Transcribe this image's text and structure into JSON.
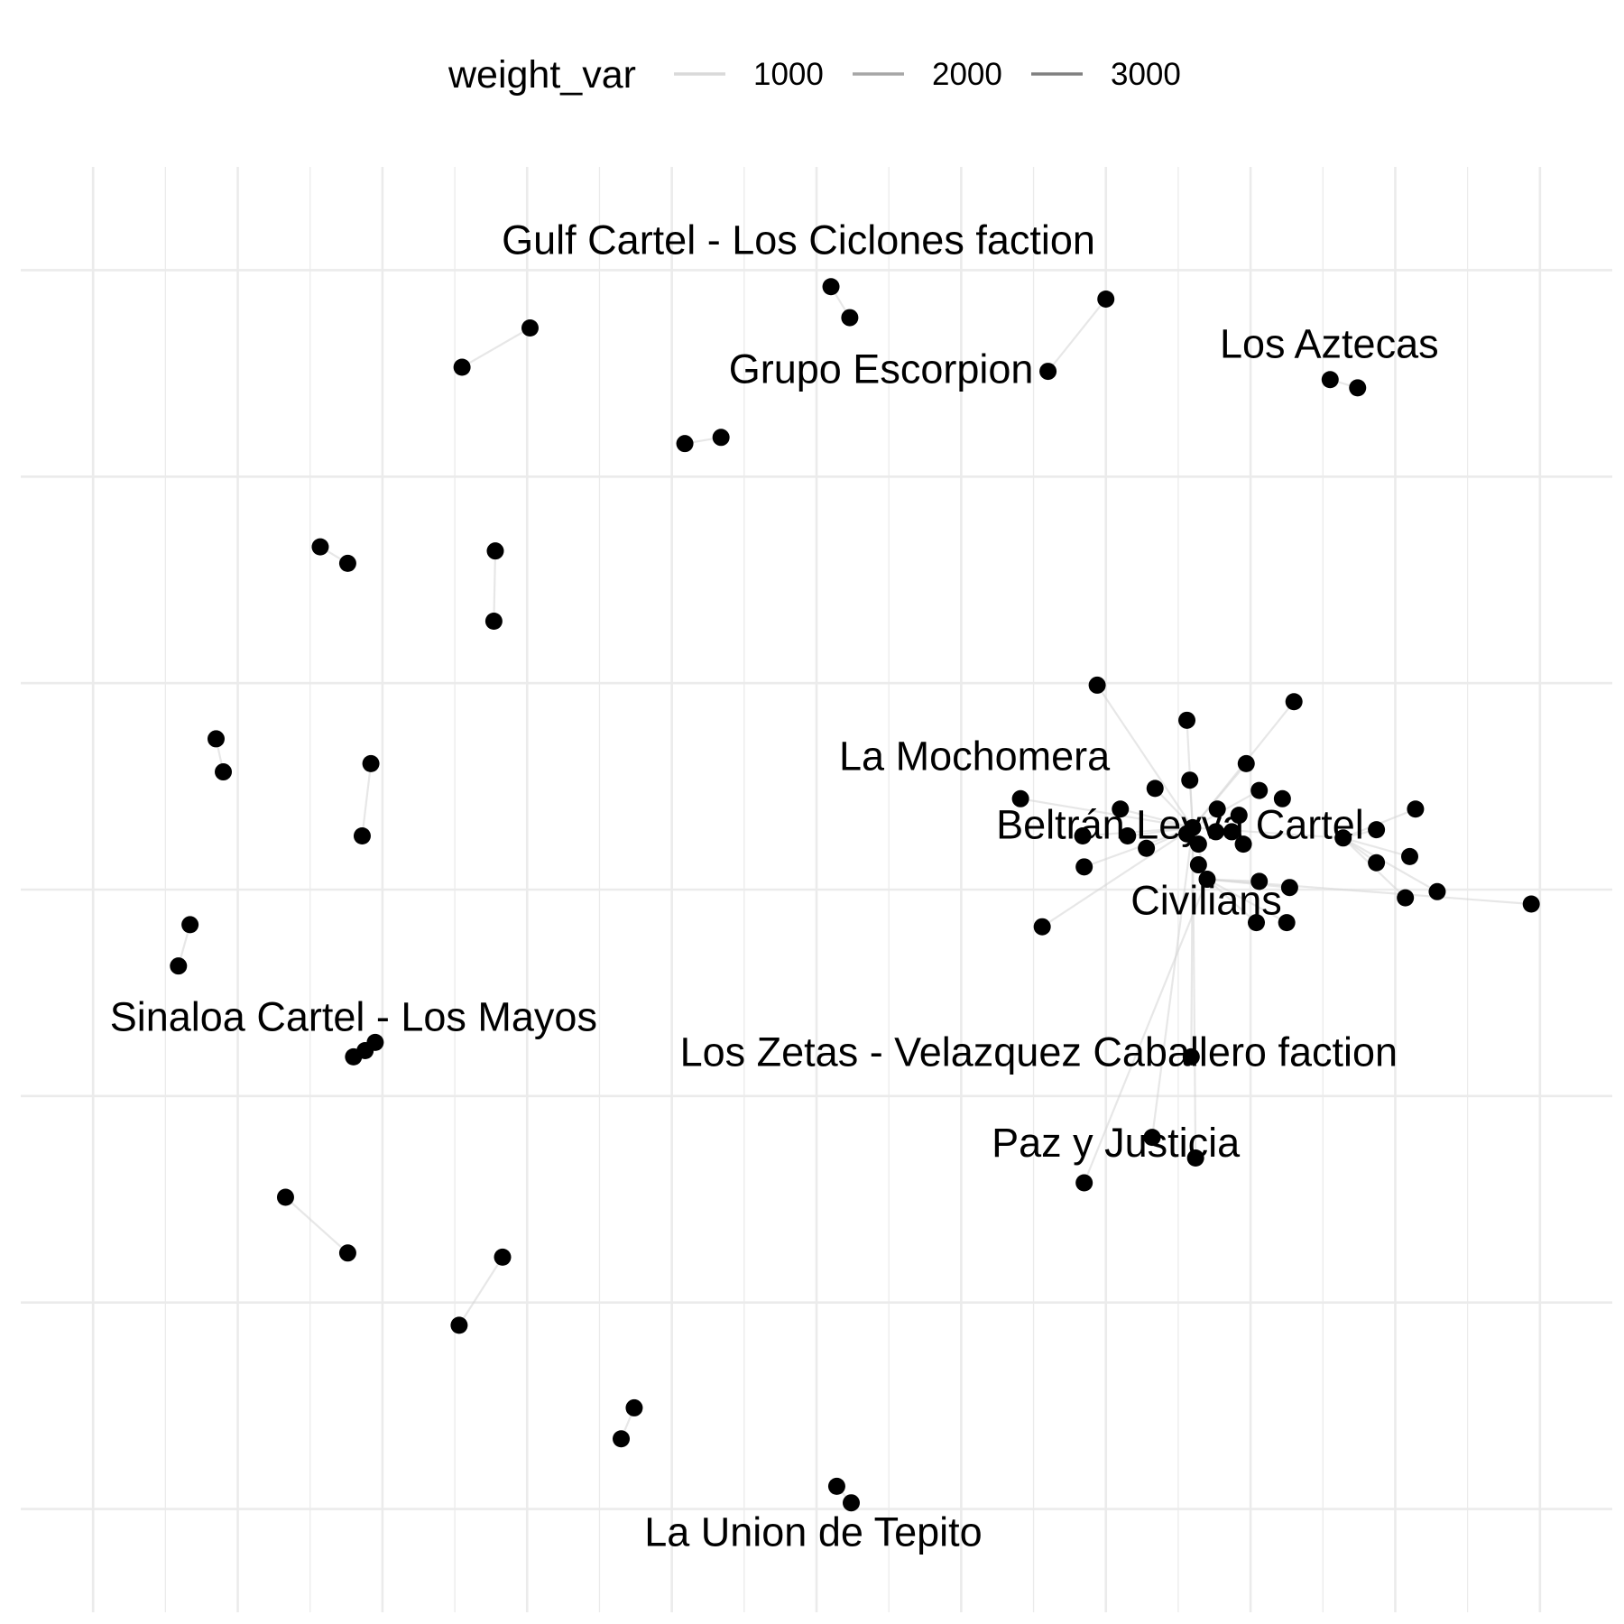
{
  "chart_data": {
    "type": "network",
    "title": "",
    "xlabel": "",
    "ylabel": "",
    "grid": true,
    "axes": "hidden",
    "xlim": [
      -0.5,
      10.5
    ],
    "ylim": [
      -0.5,
      6.5
    ],
    "legend": {
      "position": "top",
      "title": "weight_var",
      "entries": [
        {
          "label": "1000",
          "value": 1000,
          "color": "#d9d9d9"
        },
        {
          "label": "2000",
          "value": 2000,
          "color": "#a6a6a6"
        },
        {
          "label": "3000",
          "value": 3000,
          "color": "#808080"
        }
      ]
    },
    "labels": [
      {
        "text": "Gulf Cartel - Los Ciclones faction",
        "node": "gulf"
      },
      {
        "text": "Grupo Escorpion",
        "node": "grupo"
      },
      {
        "text": "Los Aztecas",
        "node": "aztecas"
      },
      {
        "text": "La Mochomera",
        "node": "mochomera"
      },
      {
        "text": "Beltrán Leyva Cartel",
        "node": "blc"
      },
      {
        "text": "Civilians",
        "node": "civ"
      },
      {
        "text": "Sinaloa Cartel - Los Mayos",
        "node": "mayos"
      },
      {
        "text": "Los Zetas - Velazquez Caballero faction",
        "node": "zetas"
      },
      {
        "text": "Paz y Justicia",
        "node": "paz"
      },
      {
        "text": "La Union de Tepito",
        "node": "tepito"
      }
    ],
    "nodes": [
      {
        "id": "gulf",
        "x": 5.1,
        "y": 5.92
      },
      {
        "id": "gulf_b",
        "x": 5.23,
        "y": 5.77
      },
      {
        "id": "grupo",
        "x": 6.6,
        "y": 5.51
      },
      {
        "id": "grupo_b",
        "x": 7.0,
        "y": 5.86
      },
      {
        "id": "aztecas",
        "x": 8.55,
        "y": 5.47
      },
      {
        "id": "aztecas_b",
        "x": 8.74,
        "y": 5.43
      },
      {
        "id": "n1",
        "x": 3.02,
        "y": 5.72
      },
      {
        "id": "n2",
        "x": 2.55,
        "y": 5.53
      },
      {
        "id": "n3",
        "x": 4.09,
        "y": 5.16
      },
      {
        "id": "n4",
        "x": 4.34,
        "y": 5.19
      },
      {
        "id": "n5",
        "x": 1.57,
        "y": 4.66
      },
      {
        "id": "n6",
        "x": 1.76,
        "y": 4.58
      },
      {
        "id": "n7",
        "x": 2.78,
        "y": 4.64
      },
      {
        "id": "n8",
        "x": 2.77,
        "y": 4.3
      },
      {
        "id": "n9",
        "x": 0.85,
        "y": 3.73
      },
      {
        "id": "n10",
        "x": 0.9,
        "y": 3.57
      },
      {
        "id": "n11",
        "x": 1.92,
        "y": 3.61
      },
      {
        "id": "n12",
        "x": 1.86,
        "y": 3.26
      },
      {
        "id": "n13",
        "x": 0.67,
        "y": 2.83
      },
      {
        "id": "n14",
        "x": 0.59,
        "y": 2.63
      },
      {
        "id": "mayos",
        "x": 1.8,
        "y": 2.19
      },
      {
        "id": "mayos_b",
        "x": 1.88,
        "y": 2.22
      },
      {
        "id": "mayos_c",
        "x": 1.95,
        "y": 2.26
      },
      {
        "id": "n15",
        "x": 1.33,
        "y": 1.51
      },
      {
        "id": "n16",
        "x": 1.76,
        "y": 1.24
      },
      {
        "id": "n17",
        "x": 2.83,
        "y": 1.22
      },
      {
        "id": "n18",
        "x": 2.53,
        "y": 0.89
      },
      {
        "id": "n19",
        "x": 3.74,
        "y": 0.49
      },
      {
        "id": "n20",
        "x": 3.65,
        "y": 0.34
      },
      {
        "id": "tepito",
        "x": 5.14,
        "y": 0.11
      },
      {
        "id": "tepito_b",
        "x": 5.24,
        "y": 0.03
      },
      {
        "id": "blc",
        "x": 7.6,
        "y": 3.3
      },
      {
        "id": "civ",
        "x": 7.7,
        "y": 3.05
      },
      {
        "id": "mochomera",
        "x": 6.41,
        "y": 3.44
      },
      {
        "id": "zetas",
        "x": 7.59,
        "y": 2.19
      },
      {
        "id": "paz",
        "x": 6.85,
        "y": 1.58
      },
      {
        "id": "h1",
        "x": 6.94,
        "y": 3.99
      },
      {
        "id": "h2",
        "x": 7.56,
        "y": 3.82
      },
      {
        "id": "h3",
        "x": 8.3,
        "y": 3.91
      },
      {
        "id": "h4",
        "x": 7.97,
        "y": 3.61
      },
      {
        "id": "h5",
        "x": 8.06,
        "y": 3.48
      },
      {
        "id": "h6",
        "x": 7.58,
        "y": 3.53
      },
      {
        "id": "h7",
        "x": 7.34,
        "y": 3.49
      },
      {
        "id": "h8",
        "x": 7.1,
        "y": 3.39
      },
      {
        "id": "h9",
        "x": 6.84,
        "y": 3.26
      },
      {
        "id": "h10",
        "x": 7.15,
        "y": 3.26
      },
      {
        "id": "h11",
        "x": 7.77,
        "y": 3.39
      },
      {
        "id": "h12",
        "x": 7.92,
        "y": 3.36
      },
      {
        "id": "h13",
        "x": 8.22,
        "y": 3.44
      },
      {
        "id": "h14",
        "x": 7.56,
        "y": 3.27
      },
      {
        "id": "h15",
        "x": 7.64,
        "y": 3.22
      },
      {
        "id": "h16",
        "x": 7.76,
        "y": 3.28
      },
      {
        "id": "h17",
        "x": 7.87,
        "y": 3.28
      },
      {
        "id": "h18",
        "x": 7.95,
        "y": 3.22
      },
      {
        "id": "h19",
        "x": 7.28,
        "y": 3.2
      },
      {
        "id": "h20",
        "x": 7.64,
        "y": 3.12
      },
      {
        "id": "h21",
        "x": 6.85,
        "y": 3.11
      },
      {
        "id": "h22",
        "x": 8.06,
        "y": 3.04
      },
      {
        "id": "h23",
        "x": 8.27,
        "y": 3.01
      },
      {
        "id": "h24",
        "x": 8.64,
        "y": 3.25
      },
      {
        "id": "h25",
        "x": 8.87,
        "y": 3.29
      },
      {
        "id": "h26",
        "x": 9.14,
        "y": 3.39
      },
      {
        "id": "h27",
        "x": 8.87,
        "y": 3.13
      },
      {
        "id": "h28",
        "x": 9.1,
        "y": 3.16
      },
      {
        "id": "h29",
        "x": 9.07,
        "y": 2.96
      },
      {
        "id": "h30",
        "x": 9.29,
        "y": 2.99
      },
      {
        "id": "h31",
        "x": 9.94,
        "y": 2.93
      },
      {
        "id": "h32",
        "x": 8.04,
        "y": 2.84
      },
      {
        "id": "h33",
        "x": 8.25,
        "y": 2.84
      },
      {
        "id": "h34",
        "x": 6.56,
        "y": 2.82
      },
      {
        "id": "h35",
        "x": 7.32,
        "y": 1.8
      },
      {
        "id": "h36",
        "x": 7.62,
        "y": 1.7
      }
    ],
    "edges": [
      {
        "source": "gulf",
        "target": "gulf_b",
        "weight": 1000
      },
      {
        "source": "grupo",
        "target": "grupo_b",
        "weight": 1000
      },
      {
        "source": "aztecas",
        "target": "aztecas_b",
        "weight": 1000
      },
      {
        "source": "n1",
        "target": "n2",
        "weight": 1000
      },
      {
        "source": "n3",
        "target": "n4",
        "weight": 1000
      },
      {
        "source": "n5",
        "target": "n6",
        "weight": 1000
      },
      {
        "source": "n7",
        "target": "n8",
        "weight": 1000
      },
      {
        "source": "n9",
        "target": "n10",
        "weight": 1000
      },
      {
        "source": "n11",
        "target": "n12",
        "weight": 1000
      },
      {
        "source": "n13",
        "target": "n14",
        "weight": 1000
      },
      {
        "source": "mayos",
        "target": "mayos_b",
        "weight": 1000
      },
      {
        "source": "mayos_b",
        "target": "mayos_c",
        "weight": 1000
      },
      {
        "source": "n15",
        "target": "n16",
        "weight": 1000
      },
      {
        "source": "n17",
        "target": "n18",
        "weight": 1000
      },
      {
        "source": "n19",
        "target": "n20",
        "weight": 1000
      },
      {
        "source": "tepito",
        "target": "tepito_b",
        "weight": 1000
      },
      {
        "source": "blc",
        "target": "h1",
        "weight": 1000
      },
      {
        "source": "blc",
        "target": "h2",
        "weight": 1000
      },
      {
        "source": "blc",
        "target": "h3",
        "weight": 1000
      },
      {
        "source": "blc",
        "target": "h4",
        "weight": 1000
      },
      {
        "source": "blc",
        "target": "h5",
        "weight": 1000
      },
      {
        "source": "blc",
        "target": "h6",
        "weight": 1000
      },
      {
        "source": "blc",
        "target": "h7",
        "weight": 1000
      },
      {
        "source": "blc",
        "target": "h8",
        "weight": 1000
      },
      {
        "source": "blc",
        "target": "mochomera",
        "weight": 1000
      },
      {
        "source": "blc",
        "target": "h9",
        "weight": 1000
      },
      {
        "source": "blc",
        "target": "h10",
        "weight": 1000
      },
      {
        "source": "blc",
        "target": "h19",
        "weight": 1000
      },
      {
        "source": "blc",
        "target": "h21",
        "weight": 1000
      },
      {
        "source": "blc",
        "target": "h24",
        "weight": 1000
      },
      {
        "source": "blc",
        "target": "h34",
        "weight": 1000
      },
      {
        "source": "blc",
        "target": "zetas",
        "weight": 1000
      },
      {
        "source": "blc",
        "target": "h36",
        "weight": 1000
      },
      {
        "source": "blc",
        "target": "h35",
        "weight": 1000
      },
      {
        "source": "blc",
        "target": "civ",
        "weight": 1000
      },
      {
        "source": "civ",
        "target": "h22",
        "weight": 1000
      },
      {
        "source": "civ",
        "target": "h23",
        "weight": 1000
      },
      {
        "source": "civ",
        "target": "h32",
        "weight": 1000
      },
      {
        "source": "civ",
        "target": "h33",
        "weight": 1000
      },
      {
        "source": "civ",
        "target": "h31",
        "weight": 1000
      },
      {
        "source": "civ",
        "target": "paz",
        "weight": 1000
      },
      {
        "source": "h24",
        "target": "h25",
        "weight": 1000
      },
      {
        "source": "h24",
        "target": "h26",
        "weight": 1000
      },
      {
        "source": "h24",
        "target": "h27",
        "weight": 1000
      },
      {
        "source": "h24",
        "target": "h28",
        "weight": 1000
      },
      {
        "source": "h24",
        "target": "h29",
        "weight": 1000
      },
      {
        "source": "h24",
        "target": "h30",
        "weight": 1000
      }
    ]
  }
}
